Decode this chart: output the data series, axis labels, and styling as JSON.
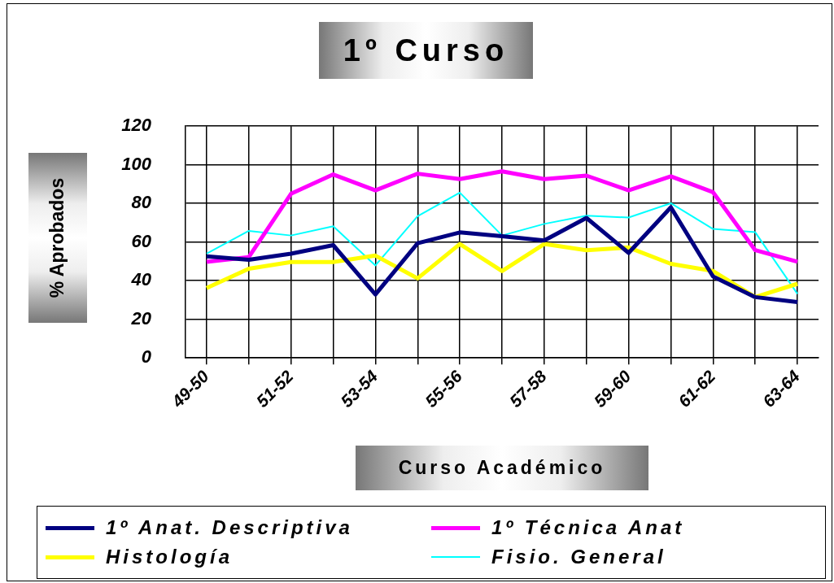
{
  "chart_data": {
    "type": "line",
    "title": "1º Curso",
    "xlabel": "Curso Académico",
    "ylabel": "% Aprobados",
    "categories": [
      "49-50",
      null,
      "51-52",
      null,
      "53-54",
      null,
      "55-56",
      null,
      "57-58",
      null,
      "59-60",
      null,
      "61-62",
      null,
      "63-64"
    ],
    "series": [
      {
        "name": "1º Anat. Descriptiva",
        "color": "#000080",
        "values": [
          52.6,
          50.8,
          54,
          58.4,
          32.9,
          59.4,
          65,
          63,
          60.8,
          72.5,
          54.4,
          78,
          42.2,
          31.5,
          28.9
        ]
      },
      {
        "name": "1º Técnica Anat",
        "color": "#ff00ff",
        "values": [
          49.8,
          52.2,
          85,
          95,
          86.8,
          95.4,
          92.6,
          96.6,
          92.6,
          94.4,
          86.8,
          94,
          85.8,
          55.8,
          49.8
        ]
      },
      {
        "name": "Histología",
        "color": "#ffff00",
        "values": [
          36.2,
          46.2,
          49.7,
          49.7,
          53,
          41.2,
          59,
          45,
          59,
          55.8,
          57.2,
          48.7,
          45,
          31.5,
          38.4
        ]
      },
      {
        "name": "Fisio. General",
        "color": "#00ffff",
        "values": [
          54,
          65.8,
          63.4,
          68.2,
          47.9,
          73.4,
          85.6,
          63.4,
          69.4,
          73.7,
          72.7,
          80.1,
          66.8,
          65.1,
          33.2
        ]
      }
    ],
    "ylim": [
      0,
      120
    ],
    "yticks": [
      0,
      20,
      40,
      60,
      80,
      100,
      120
    ],
    "grid": true,
    "legend": "bottom",
    "marker": "none",
    "line_style": "solid"
  }
}
